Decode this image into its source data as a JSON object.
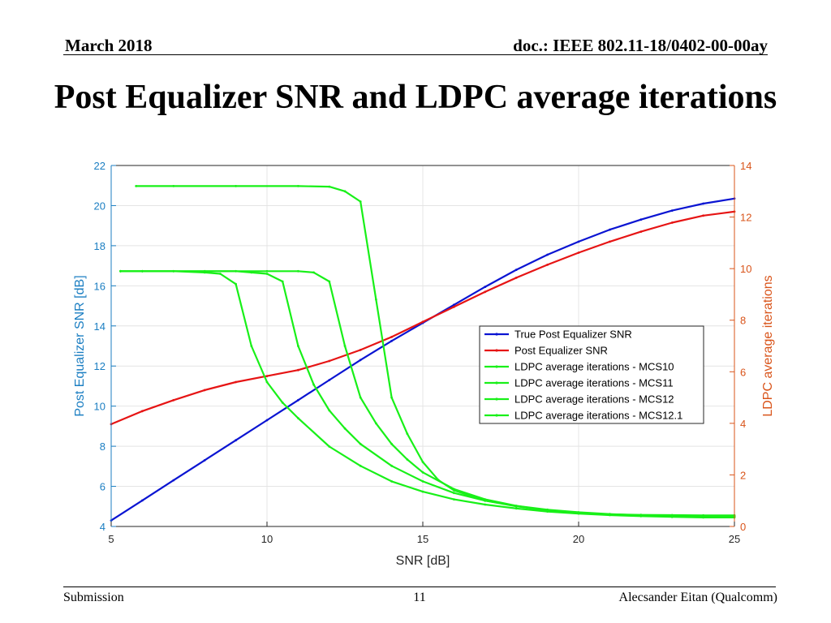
{
  "header": {
    "date": "March 2018",
    "doc_id": "doc.: IEEE 802.11-18/0402-00-00ay"
  },
  "slide": {
    "title": "Post Equalizer SNR and LDPC average iterations"
  },
  "footer": {
    "left": "Submission",
    "page": "11",
    "right": "Alecsander Eitan (Qualcomm)"
  },
  "colors": {
    "left_axis": "#1b7ec2",
    "right_axis": "#d9541a",
    "true_snr": "#0a14d2",
    "post_snr": "#e61414",
    "ldpc": "#18f018"
  },
  "chart_data": {
    "type": "line",
    "xlabel": "SNR [dB]",
    "ylabel_left": "Post Equalizer SNR [dB]",
    "ylabel_right": "LDPC average iterations",
    "xlim": [
      5,
      25
    ],
    "ylim_left": [
      4,
      22
    ],
    "ylim_right": [
      0,
      14
    ],
    "xticks": [
      5,
      10,
      15,
      20,
      25
    ],
    "yticks_left": [
      4,
      6,
      8,
      10,
      12,
      14,
      16,
      18,
      20,
      22
    ],
    "yticks_right": [
      0,
      2,
      4,
      6,
      8,
      10,
      12,
      14
    ],
    "grid": true,
    "legend_position": "center-right",
    "series": [
      {
        "name": "True Post Equalizer SNR",
        "axis": "left",
        "color": "#0a14d2",
        "x": [
          5,
          6,
          7,
          8,
          9,
          10,
          11,
          12,
          13,
          14,
          15,
          16,
          17,
          18,
          19,
          20,
          21,
          22,
          23,
          24,
          25
        ],
        "y": [
          4.3,
          5.3,
          6.3,
          7.3,
          8.3,
          9.3,
          10.3,
          11.3,
          12.3,
          13.25,
          14.15,
          15.05,
          15.95,
          16.8,
          17.55,
          18.2,
          18.8,
          19.3,
          19.75,
          20.1,
          20.35
        ]
      },
      {
        "name": "Post Equalizer SNR",
        "axis": "left",
        "color": "#e61414",
        "x": [
          5,
          6,
          7,
          8,
          9,
          10,
          11,
          12,
          13,
          14,
          15,
          16,
          17,
          18,
          19,
          20,
          21,
          22,
          23,
          24,
          25
        ],
        "y": [
          9.1,
          9.75,
          10.3,
          10.8,
          11.2,
          11.5,
          11.8,
          12.25,
          12.8,
          13.45,
          14.2,
          14.95,
          15.7,
          16.4,
          17.05,
          17.65,
          18.2,
          18.7,
          19.15,
          19.5,
          19.7
        ]
      },
      {
        "name": "LDPC average iterations - MCS10",
        "axis": "right",
        "color": "#18f018",
        "x": [
          5.3,
          6,
          7,
          8,
          8.5,
          9,
          9.5,
          10,
          10.5,
          11,
          12,
          13,
          14,
          15,
          16,
          17,
          18,
          19,
          20,
          21,
          22,
          23,
          24,
          25
        ],
        "y": [
          9.9,
          9.9,
          9.9,
          9.85,
          9.8,
          9.4,
          7.0,
          5.6,
          4.8,
          4.2,
          3.1,
          2.35,
          1.75,
          1.35,
          1.05,
          0.85,
          0.7,
          0.58,
          0.5,
          0.44,
          0.4,
          0.37,
          0.35,
          0.35
        ]
      },
      {
        "name": "LDPC average iterations - MCS11",
        "axis": "right",
        "color": "#18f018",
        "x": [
          5.3,
          6,
          7,
          8,
          9,
          9.5,
          10,
          10.5,
          11,
          11.5,
          12,
          12.5,
          13,
          14,
          15,
          16,
          17,
          18,
          19,
          20,
          21,
          22,
          23,
          24,
          25
        ],
        "y": [
          9.9,
          9.9,
          9.9,
          9.9,
          9.9,
          9.85,
          9.8,
          9.5,
          7.0,
          5.5,
          4.5,
          3.8,
          3.2,
          2.35,
          1.75,
          1.3,
          1.0,
          0.8,
          0.65,
          0.55,
          0.48,
          0.43,
          0.4,
          0.38,
          0.37
        ]
      },
      {
        "name": "LDPC average iterations - MCS12",
        "axis": "right",
        "color": "#18f018",
        "x": [
          5.3,
          6,
          8,
          10,
          11,
          11.5,
          12,
          12.5,
          13,
          13.5,
          14,
          14.5,
          15,
          16,
          17,
          18,
          19,
          20,
          21,
          22,
          23,
          24,
          25
        ],
        "y": [
          9.9,
          9.9,
          9.9,
          9.9,
          9.9,
          9.85,
          9.5,
          7.0,
          5.0,
          4.0,
          3.2,
          2.6,
          2.1,
          1.45,
          1.05,
          0.8,
          0.62,
          0.52,
          0.46,
          0.43,
          0.41,
          0.4,
          0.4
        ]
      },
      {
        "name": "LDPC average iterations - MCS12.1",
        "axis": "right",
        "color": "#18f018",
        "x": [
          5.8,
          7,
          9,
          11,
          12,
          12.5,
          13,
          13.5,
          14,
          14.5,
          15,
          15.5,
          16,
          17,
          18,
          19,
          20,
          21,
          22,
          23,
          24,
          25
        ],
        "y": [
          13.2,
          13.2,
          13.2,
          13.2,
          13.18,
          13.0,
          12.6,
          8.8,
          5.0,
          3.6,
          2.5,
          1.8,
          1.4,
          1.0,
          0.78,
          0.62,
          0.52,
          0.47,
          0.45,
          0.44,
          0.43,
          0.43
        ]
      }
    ]
  }
}
